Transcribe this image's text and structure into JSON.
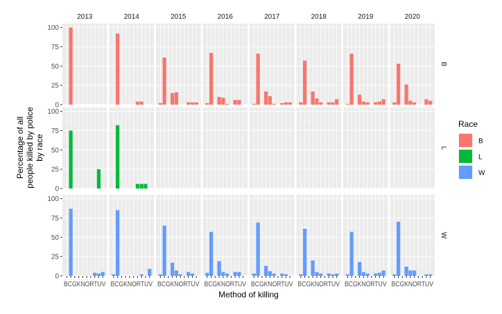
{
  "chart_data": {
    "type": "bar",
    "layout": "facet-grid",
    "xlabel": "Method of killing",
    "ylabel": [
      "Percentage of all",
      "people killed by police",
      "by race"
    ],
    "x_tick_label": "BCGKNORTUV",
    "categories": [
      "B",
      "C",
      "G",
      "K",
      "N",
      "O",
      "R",
      "T",
      "U",
      "V"
    ],
    "ylim": [
      0,
      105
    ],
    "yticks": [
      0,
      25,
      50,
      75,
      100
    ],
    "grid": true,
    "legend": {
      "title": "Race",
      "position": "right",
      "items": [
        {
          "label": "B",
          "color": "#F8766D"
        },
        {
          "label": "L",
          "color": "#00BA38"
        },
        {
          "label": "W",
          "color": "#619CFF"
        }
      ]
    },
    "columns": [
      "2013",
      "2014",
      "2015",
      "2016",
      "2017",
      "2018",
      "2019",
      "2020"
    ],
    "rows": [
      "B",
      "L",
      "W"
    ],
    "panels": {
      "B": {
        "2013": [
          0,
          100,
          0,
          0,
          0,
          0,
          0,
          0,
          0,
          0
        ],
        "2014": [
          0,
          92,
          0,
          0,
          0,
          0,
          4,
          4,
          0,
          0
        ],
        "2015": [
          2,
          61,
          0,
          15,
          16,
          0,
          0,
          3,
          3,
          3
        ],
        "2016": [
          2,
          67,
          0,
          10,
          9,
          1,
          0,
          6,
          6,
          0
        ],
        "2017": [
          1,
          66,
          0,
          17,
          11,
          1,
          0,
          2,
          3,
          3
        ],
        "2018": [
          3,
          57,
          0,
          17,
          8,
          3,
          0,
          3,
          3,
          7
        ],
        "2019": [
          1,
          66,
          0,
          13,
          4,
          3,
          0,
          3,
          4,
          7
        ],
        "2020": [
          3,
          53,
          0,
          26,
          5,
          3,
          0,
          0,
          7,
          5
        ]
      },
      "L": {
        "2013": [
          0,
          75,
          0,
          0,
          0,
          0,
          0,
          0,
          25,
          0
        ],
        "2014": [
          0,
          82,
          0,
          0,
          0,
          0,
          6,
          6,
          6,
          0
        ],
        "2015": [
          0,
          0,
          0,
          0,
          0,
          0,
          0,
          0,
          0,
          0
        ],
        "2016": [
          0,
          0,
          0,
          0,
          0,
          0,
          0,
          0,
          0,
          0
        ],
        "2017": [
          0,
          0,
          0,
          0,
          0,
          0,
          0,
          0,
          0,
          0
        ],
        "2018": [
          0,
          0,
          0,
          0,
          0,
          0,
          0,
          0,
          0,
          0
        ],
        "2019": [
          0,
          0,
          0,
          0,
          0,
          0,
          0,
          0,
          0,
          0
        ],
        "2020": [
          0,
          0,
          0,
          0,
          0,
          0,
          0,
          0,
          0,
          0
        ]
      },
      "W": {
        "2013": [
          0,
          87,
          0,
          0,
          0,
          0,
          0,
          4,
          3,
          5
        ],
        "2014": [
          2,
          85,
          0,
          0,
          0,
          0,
          0,
          2,
          0,
          9
        ],
        "2015": [
          2,
          65,
          0,
          17,
          7,
          2,
          0,
          5,
          3,
          0
        ],
        "2016": [
          4,
          57,
          0,
          19,
          5,
          3,
          0,
          5,
          5,
          0
        ],
        "2017": [
          3,
          69,
          0,
          13,
          6,
          3,
          0,
          3,
          2,
          0
        ],
        "2018": [
          2,
          61,
          0,
          20,
          5,
          3,
          0,
          3,
          2,
          3
        ],
        "2019": [
          2,
          57,
          0,
          18,
          5,
          3,
          0,
          3,
          4,
          7
        ],
        "2020": [
          2,
          70,
          0,
          12,
          7,
          7,
          0,
          0,
          2,
          2
        ]
      }
    }
  }
}
